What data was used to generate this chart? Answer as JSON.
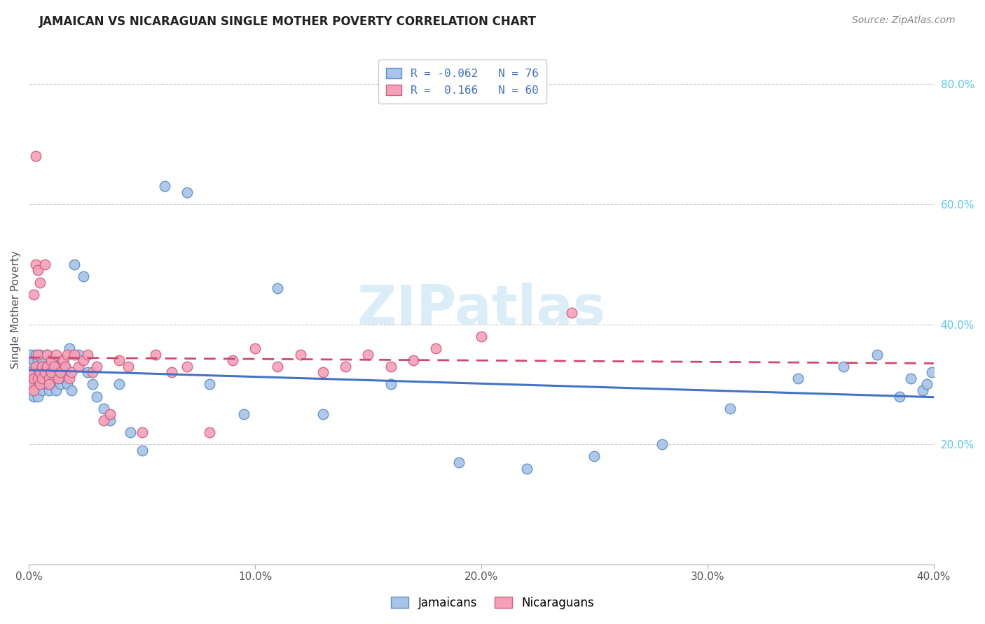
{
  "title": "JAMAICAN VS NICARAGUAN SINGLE MOTHER POVERTY CORRELATION CHART",
  "source": "Source: ZipAtlas.com",
  "ylabel": "Single Mother Poverty",
  "xlim": [
    0.0,
    0.4
  ],
  "ylim": [
    0.0,
    0.85
  ],
  "xticks": [
    0.0,
    0.1,
    0.2,
    0.3,
    0.4
  ],
  "yticks_right": [
    0.2,
    0.4,
    0.6,
    0.8
  ],
  "blue_face": "#a8c4e8",
  "blue_edge": "#5b8fc9",
  "pink_face": "#f5a0b8",
  "pink_edge": "#d06080",
  "trend_blue": "#4472c4",
  "trend_pink": "#d04870",
  "right_tick_color": "#5bc8f5",
  "watermark_color": "#cce8f4",
  "legend_label_blue": "R = -0.062   N = 76",
  "legend_label_pink": "R =  0.166   N = 60",
  "bottom_label_blue": "Jamaicans",
  "bottom_label_pink": "Nicaraguans",
  "jamaicans_x": [
    0.001,
    0.001,
    0.001,
    0.002,
    0.002,
    0.002,
    0.002,
    0.003,
    0.003,
    0.003,
    0.003,
    0.003,
    0.004,
    0.004,
    0.004,
    0.004,
    0.005,
    0.005,
    0.005,
    0.005,
    0.005,
    0.006,
    0.006,
    0.006,
    0.007,
    0.007,
    0.007,
    0.008,
    0.008,
    0.009,
    0.009,
    0.01,
    0.01,
    0.011,
    0.011,
    0.012,
    0.012,
    0.013,
    0.014,
    0.015,
    0.015,
    0.016,
    0.017,
    0.018,
    0.019,
    0.02,
    0.022,
    0.024,
    0.026,
    0.028,
    0.03,
    0.033,
    0.036,
    0.04,
    0.045,
    0.05,
    0.06,
    0.07,
    0.08,
    0.095,
    0.11,
    0.13,
    0.16,
    0.19,
    0.22,
    0.25,
    0.28,
    0.31,
    0.34,
    0.36,
    0.375,
    0.385,
    0.39,
    0.395,
    0.397,
    0.399
  ],
  "jamaicans_y": [
    0.33,
    0.3,
    0.35,
    0.32,
    0.28,
    0.34,
    0.31,
    0.3,
    0.33,
    0.35,
    0.29,
    0.31,
    0.32,
    0.34,
    0.3,
    0.28,
    0.33,
    0.31,
    0.35,
    0.3,
    0.32,
    0.29,
    0.34,
    0.31,
    0.33,
    0.3,
    0.32,
    0.35,
    0.31,
    0.29,
    0.33,
    0.32,
    0.3,
    0.34,
    0.31,
    0.33,
    0.29,
    0.32,
    0.3,
    0.34,
    0.31,
    0.33,
    0.3,
    0.36,
    0.29,
    0.5,
    0.35,
    0.48,
    0.32,
    0.3,
    0.28,
    0.26,
    0.24,
    0.3,
    0.22,
    0.19,
    0.63,
    0.62,
    0.3,
    0.25,
    0.46,
    0.25,
    0.3,
    0.17,
    0.16,
    0.18,
    0.2,
    0.26,
    0.31,
    0.33,
    0.35,
    0.28,
    0.31,
    0.29,
    0.3,
    0.32
  ],
  "nicaraguans_x": [
    0.001,
    0.001,
    0.002,
    0.002,
    0.002,
    0.003,
    0.003,
    0.003,
    0.004,
    0.004,
    0.004,
    0.005,
    0.005,
    0.005,
    0.006,
    0.006,
    0.007,
    0.007,
    0.008,
    0.008,
    0.009,
    0.009,
    0.01,
    0.01,
    0.011,
    0.012,
    0.013,
    0.014,
    0.015,
    0.016,
    0.017,
    0.018,
    0.019,
    0.02,
    0.022,
    0.024,
    0.026,
    0.028,
    0.03,
    0.033,
    0.036,
    0.04,
    0.044,
    0.05,
    0.056,
    0.063,
    0.07,
    0.08,
    0.09,
    0.1,
    0.11,
    0.12,
    0.13,
    0.14,
    0.15,
    0.16,
    0.17,
    0.18,
    0.2,
    0.24
  ],
  "nicaraguans_y": [
    0.32,
    0.3,
    0.45,
    0.31,
    0.29,
    0.68,
    0.5,
    0.33,
    0.31,
    0.49,
    0.35,
    0.32,
    0.3,
    0.47,
    0.33,
    0.31,
    0.32,
    0.5,
    0.33,
    0.35,
    0.31,
    0.3,
    0.34,
    0.32,
    0.33,
    0.35,
    0.31,
    0.32,
    0.34,
    0.33,
    0.35,
    0.31,
    0.32,
    0.35,
    0.33,
    0.34,
    0.35,
    0.32,
    0.33,
    0.24,
    0.25,
    0.34,
    0.33,
    0.22,
    0.35,
    0.32,
    0.33,
    0.22,
    0.34,
    0.36,
    0.33,
    0.35,
    0.32,
    0.33,
    0.35,
    0.33,
    0.34,
    0.36,
    0.38,
    0.42
  ]
}
